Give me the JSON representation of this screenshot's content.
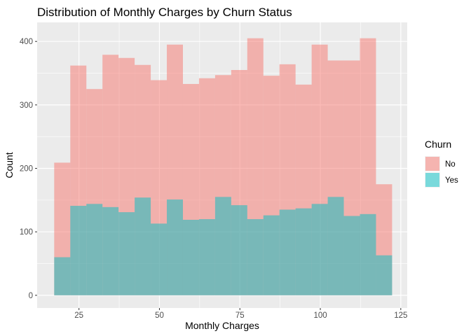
{
  "chart_data": {
    "type": "histogram",
    "title": "Distribution of Monthly Charges by Churn Status",
    "xlabel": "Monthly Charges",
    "ylabel": "Count",
    "xlim": [
      12,
      127
    ],
    "ylim": [
      -20,
      430
    ],
    "x_ticks": [
      25,
      50,
      75,
      100,
      125
    ],
    "y_ticks": [
      0,
      100,
      200,
      300,
      400
    ],
    "grid": true,
    "overlay": "identity",
    "bin_edges": [
      17.3,
      22.3,
      27.3,
      32.3,
      37.3,
      42.3,
      47.3,
      52.3,
      57.3,
      62.3,
      67.3,
      72.3,
      77.3,
      82.3,
      87.3,
      92.3,
      97.3,
      102.3,
      107.3,
      112.3,
      117.3,
      122.3
    ],
    "series": [
      {
        "name": "No",
        "color": "#F8766D",
        "opacity": 0.5,
        "values": [
          209,
          362,
          325,
          379,
          374,
          363,
          339,
          395,
          333,
          342,
          347,
          355,
          405,
          346,
          364,
          332,
          395,
          370,
          370,
          405,
          175
        ]
      },
      {
        "name": "Yes",
        "color": "#00BFC4",
        "opacity": 0.5,
        "values": [
          60,
          141,
          144,
          139,
          131,
          154,
          113,
          151,
          119,
          120,
          155,
          142,
          120,
          126,
          135,
          137,
          144,
          155,
          125,
          128,
          63
        ]
      }
    ],
    "legend": {
      "title": "Churn",
      "position": "right"
    }
  }
}
